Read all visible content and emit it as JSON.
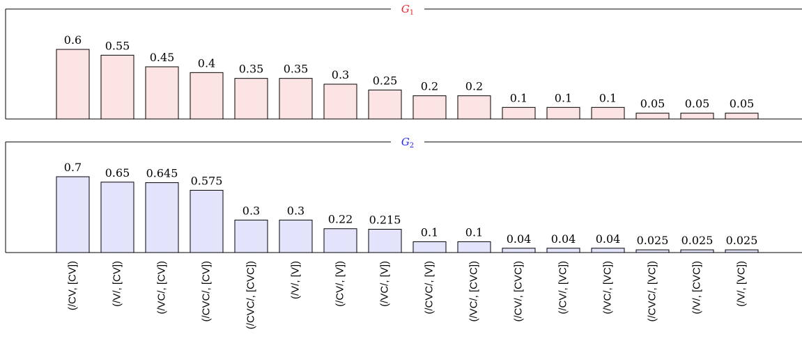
{
  "chart_data": {
    "type": "bar",
    "categories": [
      "(/CV, [CV])",
      "(/V/, [CV])",
      "(/VC/, [CV])",
      "(/CVC/, [CV])",
      "(/CVC/, [CVC])",
      "(/V/, [V])",
      "(/CV/, [V])",
      "(/VC/, [V])",
      "(/CVC/, [V])",
      "(/VC/, [CVC])",
      "(/CV/, [CVC])",
      "(/CV/, [VC])",
      "(/VC/, [VC])",
      "(/CVC/, [VC])",
      "(/V/, [CVC])",
      "(/V/, [VC])"
    ],
    "panels": [
      {
        "title": "G",
        "title_sub": "1",
        "title_color": "#e8222d",
        "bar_color": "#fde4e4",
        "values": [
          0.6,
          0.55,
          0.45,
          0.4,
          0.35,
          0.35,
          0.3,
          0.25,
          0.2,
          0.2,
          0.1,
          0.1,
          0.1,
          0.05,
          0.05,
          0.05
        ],
        "labels": [
          "0.6",
          "0.55",
          "0.45",
          "0.4",
          "0.35",
          "0.35",
          "0.3",
          "0.25",
          "0.2",
          "0.2",
          "0.1",
          "0.1",
          "0.1",
          "0.05",
          "0.05",
          "0.05"
        ],
        "ylim": [
          0,
          0.75
        ]
      },
      {
        "title": "G",
        "title_sub": "2",
        "title_color": "#2222ee",
        "bar_color": "#e3e4fb",
        "values": [
          0.7,
          0.65,
          0.645,
          0.575,
          0.3,
          0.3,
          0.22,
          0.215,
          0.1,
          0.1,
          0.04,
          0.04,
          0.04,
          0.025,
          0.025,
          0.025
        ],
        "labels": [
          "0.7",
          "0.65",
          "0.645",
          "0.575",
          "0.3",
          "0.3",
          "0.22",
          "0.215",
          "0.1",
          "0.1",
          "0.04",
          "0.04",
          "0.04",
          "0.025",
          "0.025",
          "0.025"
        ],
        "ylim": [
          0,
          0.8
        ]
      }
    ],
    "grid": false,
    "legend": "none"
  }
}
